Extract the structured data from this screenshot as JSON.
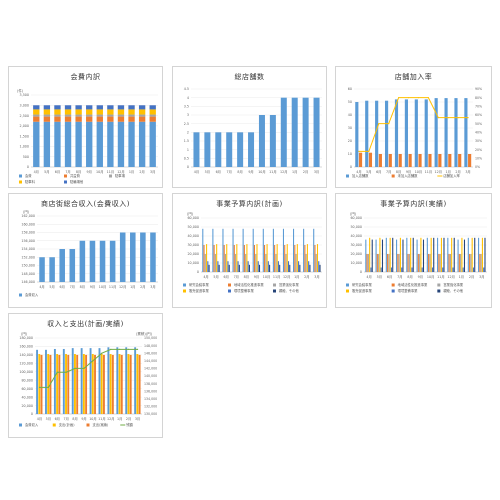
{
  "months": [
    "4月",
    "5月",
    "6月",
    "7月",
    "8月",
    "9月",
    "10月",
    "11月",
    "12月",
    "1月",
    "2月",
    "3月"
  ],
  "colors": {
    "blue": "#5b9bd5",
    "orange": "#ed7d31",
    "gray": "#a5a5a5",
    "yellow": "#ffc000",
    "navy": "#264478",
    "green": "#70ad47",
    "darkblue": "#4472c4"
  },
  "chart_data": [
    {
      "id": "c1",
      "type": "bar",
      "stacked": true,
      "title": "会費内訳",
      "unit": "(件)",
      "ylim": [
        0,
        3500
      ],
      "yticks": [
        0,
        500,
        1000,
        1500,
        2000,
        2500,
        3000,
        3500
      ],
      "series": [
        {
          "name": "会費",
          "color": "#5b9bd5",
          "values": [
            2200,
            2200,
            2200,
            2200,
            2200,
            2200,
            2200,
            2200,
            2200,
            2200,
            2200,
            2200
          ]
        },
        {
          "name": "共益費",
          "color": "#ed7d31",
          "values": [
            250,
            250,
            250,
            250,
            250,
            250,
            250,
            250,
            250,
            250,
            250,
            250
          ]
        },
        {
          "name": "駐車場",
          "color": "#a5a5a5",
          "values": [
            100,
            100,
            100,
            100,
            100,
            100,
            100,
            100,
            100,
            100,
            100,
            100
          ]
        },
        {
          "name": "駐車料",
          "color": "#ffc000",
          "values": [
            250,
            250,
            250,
            250,
            250,
            250,
            250,
            250,
            250,
            250,
            250,
            250
          ]
        },
        {
          "name": "駐輪場他",
          "color": "#4472c4",
          "values": [
            200,
            200,
            200,
            200,
            200,
            200,
            200,
            200,
            200,
            200,
            200,
            200
          ]
        }
      ]
    },
    {
      "id": "c2",
      "type": "bar",
      "title": "総店舗数",
      "ylim": [
        0,
        4.5
      ],
      "yticks": [
        0,
        0.5,
        1,
        1.5,
        2,
        2.5,
        3,
        3.5,
        4,
        4.5
      ],
      "series": [
        {
          "name": "総店舗数",
          "color": "#5b9bd5",
          "values": [
            2,
            2,
            2,
            2,
            2,
            2,
            3,
            3,
            4,
            4,
            4,
            4
          ]
        }
      ]
    },
    {
      "id": "c3",
      "type": "bar",
      "secondary_line": true,
      "title": "店舗加入率",
      "ylim": [
        0,
        60
      ],
      "yticks": [
        0,
        10,
        20,
        30,
        40,
        50,
        60
      ],
      "y2lim": [
        0,
        0.9
      ],
      "y2ticks": [
        "0%",
        "10%",
        "20%",
        "30%",
        "40%",
        "50%",
        "60%",
        "70%",
        "80%",
        "90%"
      ],
      "series": [
        {
          "name": "加入店舗数",
          "color": "#5b9bd5",
          "values": [
            50,
            51,
            51,
            51,
            52,
            52,
            52,
            52,
            53,
            53,
            53,
            53
          ]
        },
        {
          "name": "未加入店舗数",
          "color": "#ed7d31",
          "values": [
            11,
            11,
            10,
            10,
            10,
            10,
            10,
            10,
            10,
            10,
            10,
            10
          ]
        },
        {
          "name": "店舗加入率",
          "color": "#ffc000",
          "line": true,
          "values": [
            0.18,
            0.18,
            0.5,
            0.5,
            0.8,
            0.8,
            0.8,
            0.8,
            0.57,
            0.57,
            0.57,
            0.57
          ]
        }
      ]
    },
    {
      "id": "c4",
      "type": "bar",
      "title": "商店街総合収入(会費収入)",
      "unit": "(円)",
      "ylim": [
        146000,
        162000
      ],
      "yticks": [
        146000,
        148000,
        150000,
        152000,
        154000,
        156000,
        158000,
        160000,
        162000
      ],
      "series": [
        {
          "name": "会費収入",
          "color": "#5b9bd5",
          "values": [
            152000,
            152000,
            154000,
            154000,
            156000,
            156000,
            156000,
            156000,
            158000,
            158000,
            158000,
            158000
          ]
        }
      ]
    },
    {
      "id": "c5",
      "type": "bar",
      "grouped": true,
      "title": "事業予算内訳(計画)",
      "unit": "(円)",
      "ylim": [
        0,
        60000
      ],
      "yticks": [
        0,
        10000,
        20000,
        30000,
        40000,
        50000,
        60000
      ],
      "series": [
        {
          "name": "研究会議事業",
          "color": "#5b9bd5",
          "values": [
            48000,
            48000,
            48000,
            48000,
            48000,
            48000,
            48000,
            48000,
            48000,
            48000,
            48000,
            48000
          ]
        },
        {
          "name": "地域活性化推進事業",
          "color": "#ed7d31",
          "values": [
            30000,
            30000,
            30000,
            30000,
            30000,
            30000,
            30000,
            30000,
            30000,
            30000,
            30000,
            30000
          ]
        },
        {
          "name": "営業強化事業",
          "color": "#a5a5a5",
          "values": [
            20000,
            20000,
            20000,
            20000,
            20000,
            20000,
            20000,
            20000,
            20000,
            20000,
            20000,
            20000
          ]
        },
        {
          "name": "販売促進事業",
          "color": "#ffc000",
          "values": [
            31000,
            31000,
            31000,
            31000,
            31000,
            31000,
            31000,
            31000,
            31000,
            31000,
            31000,
            31000
          ]
        },
        {
          "name": "環境整備事業",
          "color": "#4472c4",
          "values": [
            12000,
            12000,
            12000,
            12000,
            12000,
            12000,
            12000,
            12000,
            12000,
            12000,
            12000,
            12000
          ]
        },
        {
          "name": "親睦、その他",
          "color": "#264478",
          "values": [
            8000,
            8000,
            8000,
            8000,
            8000,
            8000,
            8000,
            8000,
            8000,
            8000,
            8000,
            8000
          ]
        }
      ]
    },
    {
      "id": "c6",
      "type": "bar",
      "grouped": true,
      "title": "事業予算内訳(実績)",
      "unit": "(円)",
      "ylim": [
        0,
        60000
      ],
      "yticks": [
        0,
        10000,
        20000,
        30000,
        40000,
        50000,
        60000
      ],
      "series": [
        {
          "name": "研究会議事業",
          "color": "#5b9bd5",
          "values": [
            36000,
            36000,
            38000,
            36000,
            38000,
            36000,
            38000,
            38000,
            38000,
            36000,
            38000,
            38000
          ]
        },
        {
          "name": "地域活性化推進事業",
          "color": "#ed7d31",
          "values": [
            20000,
            20000,
            20000,
            20000,
            20000,
            20000,
            20000,
            20000,
            20000,
            20000,
            20000,
            20000
          ]
        },
        {
          "name": "営業強化事業",
          "color": "#a5a5a5",
          "values": [
            20000,
            20000,
            20000,
            20000,
            20000,
            20000,
            20000,
            20000,
            20000,
            20000,
            20000,
            20000
          ]
        },
        {
          "name": "販売促進事業",
          "color": "#ffc000",
          "values": [
            38000,
            38000,
            38000,
            38000,
            38000,
            38000,
            38000,
            38000,
            38000,
            38000,
            38000,
            38000
          ]
        },
        {
          "name": "環境整備事業",
          "color": "#4472c4",
          "values": [
            5000,
            5000,
            5000,
            5000,
            5000,
            5000,
            5000,
            5000,
            5000,
            5000,
            5000,
            5000
          ]
        },
        {
          "name": "親睦、その他",
          "color": "#264478",
          "values": [
            36000,
            36000,
            38000,
            36000,
            38000,
            36000,
            38000,
            38000,
            38000,
            36000,
            38000,
            38000
          ]
        }
      ]
    },
    {
      "id": "c7",
      "type": "bar",
      "grouped": true,
      "secondary_line": true,
      "title": "収入と支出(計画/実績)",
      "unit": "(円)",
      "unit2": "(累積)(円)",
      "ylim": [
        0,
        180000
      ],
      "yticks": [
        0,
        20000,
        40000,
        60000,
        80000,
        100000,
        120000,
        140000,
        160000,
        180000
      ],
      "y2lim": [
        130000,
        150000
      ],
      "y2ticks": [
        "130,000",
        "132,000",
        "134,000",
        "136,000",
        "138,000",
        "140,000",
        "142,000",
        "144,000",
        "146,000",
        "148,000",
        "150,000"
      ],
      "series": [
        {
          "name": "会費収入",
          "color": "#5b9bd5",
          "values": [
            152000,
            152000,
            154000,
            154000,
            156000,
            156000,
            156000,
            156000,
            158000,
            158000,
            158000,
            158000
          ]
        },
        {
          "name": "支出(計画)",
          "color": "#ffc000",
          "values": [
            142000,
            142000,
            142000,
            142000,
            142000,
            142000,
            142000,
            142000,
            142000,
            142000,
            142000,
            142000
          ]
        },
        {
          "name": "支出(実績)",
          "color": "#ed7d31",
          "values": [
            140000,
            140000,
            140000,
            140000,
            140000,
            140000,
            140000,
            140000,
            140000,
            140000,
            140000,
            140000
          ]
        },
        {
          "name": "残額",
          "color": "#70ad47",
          "line": true,
          "values": [
            137000,
            137000,
            141000,
            141000,
            142000,
            142000,
            144000,
            146000,
            147000,
            147000,
            147000,
            147000
          ]
        }
      ]
    }
  ]
}
